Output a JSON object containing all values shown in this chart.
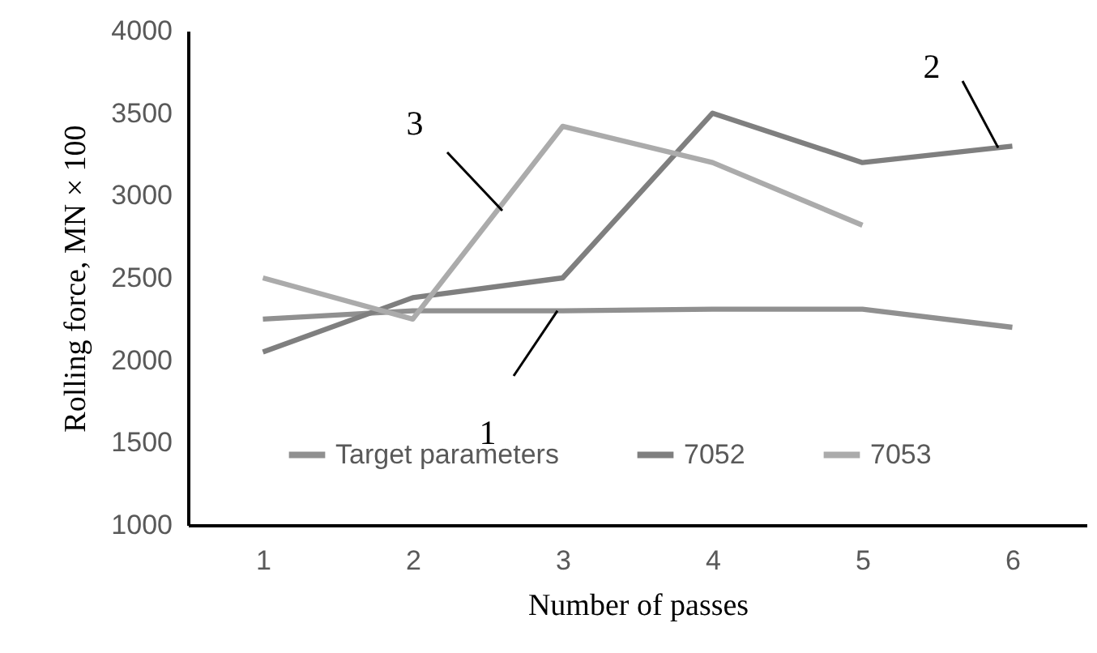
{
  "chart_data": {
    "type": "line",
    "xlabel": "Number of passes",
    "ylabel": "Rolling force, MN × 100",
    "categories": [
      "1",
      "2",
      "3",
      "4",
      "5",
      "6"
    ],
    "series": [
      {
        "name": "Target parameters",
        "color": "#909090",
        "values": [
          2250,
          2300,
          2300,
          2310,
          2310,
          2200
        ]
      },
      {
        "name": "7052",
        "color": "#7f7f7f",
        "values": [
          2050,
          2380,
          2500,
          3500,
          3200,
          3300
        ]
      },
      {
        "name": "7053",
        "color": "#ababab",
        "values": [
          2500,
          2250,
          3420,
          3200,
          2820,
          null
        ]
      }
    ],
    "ylim": [
      1000,
      4000
    ],
    "yticks": [
      1000,
      1500,
      2000,
      2500,
      3000,
      3500,
      4000
    ],
    "legend": "bottom",
    "line_style": "solid",
    "marker": "none",
    "annotations": [
      "3",
      {
        "text": "1",
        "y": 2300
      },
      {
        "text": "2",
        "y": 3290
      }
    ]
  }
}
